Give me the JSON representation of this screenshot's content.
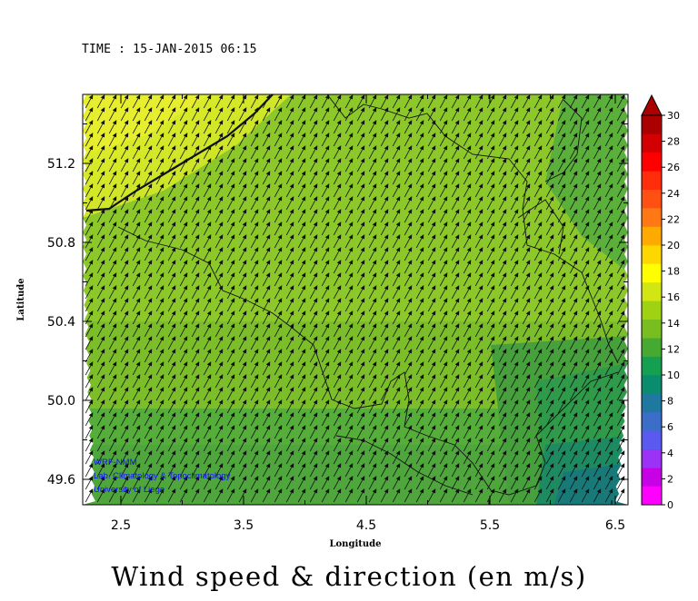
{
  "time_label": "TIME : 15-JAN-2015 06:15",
  "title": "Wind speed & direction (en m/s)",
  "xaxis": {
    "label": "Longitude",
    "ticks": [
      "2.5",
      "3.5",
      "4.5",
      "5.5",
      "6.5"
    ]
  },
  "yaxis": {
    "label": "Latitude",
    "ticks": [
      "51.2",
      "50.8",
      "50.4",
      "50.0",
      "49.6"
    ]
  },
  "colorbar": {
    "labels": [
      "30",
      "28",
      "26",
      "24",
      "22",
      "20",
      "18",
      "16",
      "14",
      "12",
      "10",
      "8",
      "6",
      "4",
      "2",
      "0"
    ],
    "colors": [
      "#ff00ff",
      "#c800e6",
      "#9b32f5",
      "#5a5af0",
      "#3a6ec8",
      "#1e78a0",
      "#0a8c6e",
      "#14a050",
      "#46aa32",
      "#78be1e",
      "#a0d214",
      "#d2e614",
      "#ffff00",
      "#ffd700",
      "#ffaa00",
      "#ff7814",
      "#ff5014",
      "#ff2d0a",
      "#ff0000",
      "#d20000",
      "#aa0000"
    ],
    "cap_color": "#aa0000",
    "bottom_cap": "#ff00ff"
  },
  "credits": [
    "WRF-NMM",
    "Lab. Climatology & Topoclimatology",
    "University of Liege"
  ],
  "chart_data": {
    "type": "heatmap",
    "description_units": "m/s",
    "x": [
      2.5,
      3.5,
      4.5,
      5.5,
      6.5
    ],
    "y": [
      49.6,
      50.0,
      50.4,
      50.8,
      51.2
    ],
    "wind_direction": "from south-west",
    "speed_range": [
      8,
      20
    ],
    "regions": [
      {
        "area": "north-west",
        "speed": 19
      },
      {
        "area": "north-center",
        "speed": 16
      },
      {
        "area": "center",
        "speed": 15
      },
      {
        "area": "south",
        "speed": 12
      },
      {
        "area": "south-east",
        "speed": 9
      }
    ]
  }
}
